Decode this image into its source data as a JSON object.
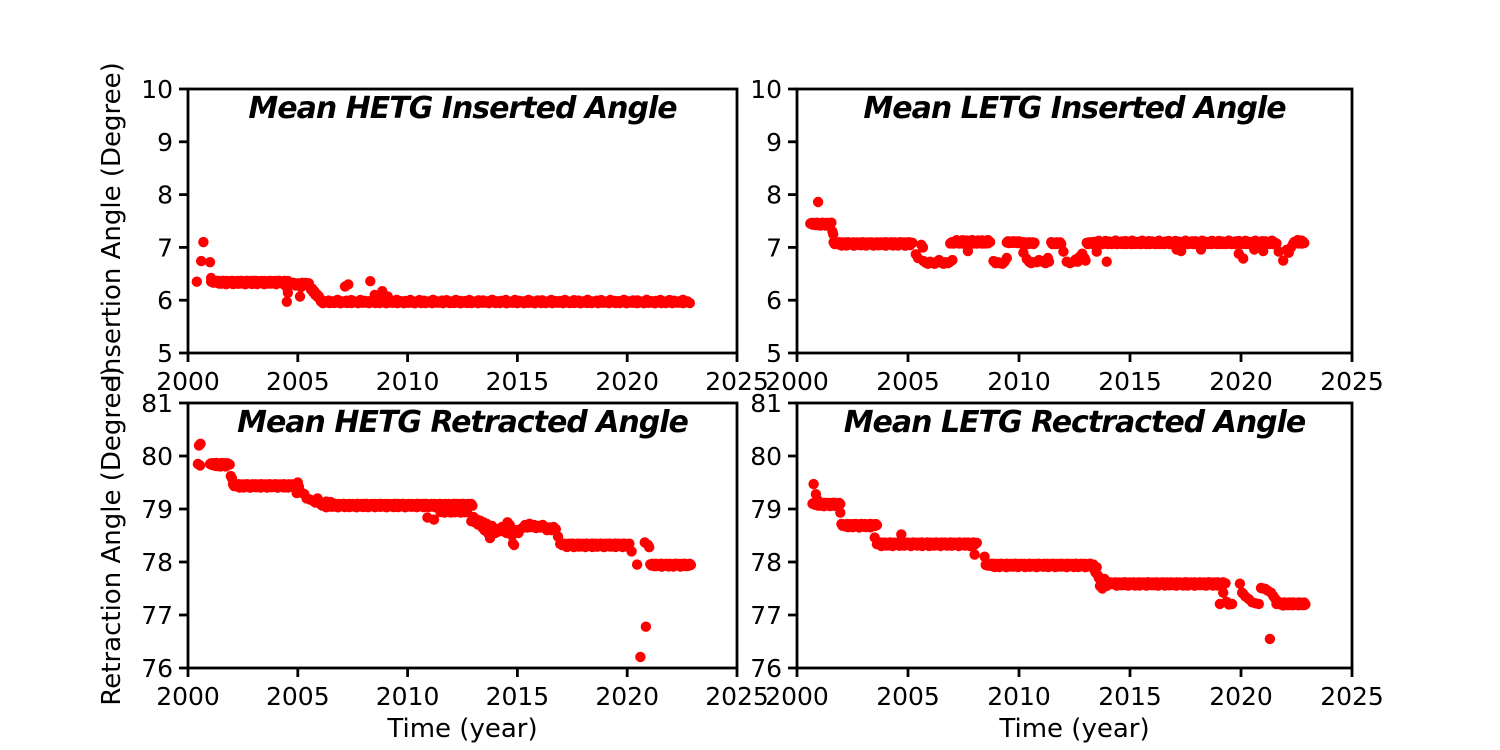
{
  "figure": {
    "background": "#ffffff",
    "axis_color": "#000000",
    "marker_color": "#ff0000"
  },
  "chart_data": [
    {
      "id": "hetg-inserted",
      "type": "scatter",
      "title": "Mean HETG Inserted Angle",
      "xlabel": "",
      "ylabel": "Insertion Angle (Degree)",
      "xlim": [
        2000,
        2025
      ],
      "ylim": [
        5,
        10
      ],
      "xticks": [
        2000,
        2005,
        2010,
        2015,
        2020,
        2025
      ],
      "yticks": [
        5,
        6,
        7,
        8,
        9,
        10
      ],
      "grid": false,
      "legend": "none",
      "marker": {
        "color": "#ff0000",
        "radius": 5.2
      },
      "runs": [
        [
          2001.05,
          2004.55,
          6.35,
          70
        ],
        [
          2001.3,
          2004.45,
          6.32,
          30
        ],
        [
          2006.05,
          2022.85,
          5.96,
          170
        ],
        [
          2006.4,
          2022.75,
          5.99,
          80
        ]
      ],
      "points": [
        [
          2000.4,
          6.35
        ],
        [
          2000.6,
          6.74
        ],
        [
          2000.7,
          7.1
        ],
        [
          2001.0,
          6.72
        ],
        [
          2001.05,
          6.42
        ],
        [
          2004.5,
          6.24
        ],
        [
          2004.5,
          5.97
        ],
        [
          2004.55,
          6.14
        ],
        [
          2004.7,
          6.3
        ],
        [
          2004.8,
          6.33
        ],
        [
          2004.9,
          6.28
        ],
        [
          2005.0,
          6.32
        ],
        [
          2005.05,
          6.3
        ],
        [
          2005.1,
          6.07
        ],
        [
          2005.15,
          6.25
        ],
        [
          2005.2,
          6.33
        ],
        [
          2005.3,
          6.3
        ],
        [
          2005.35,
          6.33
        ],
        [
          2005.45,
          6.28
        ],
        [
          2005.5,
          6.32
        ],
        [
          2005.55,
          6.25
        ],
        [
          2005.6,
          6.2
        ],
        [
          2005.65,
          6.22
        ],
        [
          2005.7,
          6.15
        ],
        [
          2005.75,
          6.17
        ],
        [
          2005.8,
          6.1
        ],
        [
          2005.85,
          6.12
        ],
        [
          2005.9,
          6.06
        ],
        [
          2005.95,
          6.08
        ],
        [
          2006.0,
          6.02
        ],
        [
          2006.1,
          6.0
        ],
        [
          2007.15,
          6.26
        ],
        [
          2007.3,
          6.3
        ],
        [
          2008.3,
          6.36
        ],
        [
          2008.5,
          6.1
        ],
        [
          2008.7,
          6.08
        ],
        [
          2008.85,
          6.17
        ],
        [
          2009.1,
          6.07
        ]
      ]
    },
    {
      "id": "letg-inserted",
      "type": "scatter",
      "title": "Mean LETG Inserted Angle",
      "xlabel": "",
      "ylabel": "",
      "xlim": [
        2000,
        2025
      ],
      "ylim": [
        5,
        10
      ],
      "xticks": [
        2000,
        2005,
        2010,
        2015,
        2020,
        2025
      ],
      "yticks": [
        5,
        6,
        7,
        8,
        9,
        10
      ],
      "grid": false,
      "legend": "none",
      "marker": {
        "color": "#ff0000",
        "radius": 5.2
      },
      "runs": [
        [
          2000.6,
          2001.55,
          7.45,
          20
        ],
        [
          2000.75,
          2001.45,
          7.43,
          10
        ],
        [
          2001.65,
          2005.2,
          7.08,
          72
        ],
        [
          2001.9,
          2005.1,
          7.05,
          30
        ],
        [
          2006.9,
          2008.7,
          7.09,
          37
        ],
        [
          2007.1,
          2008.6,
          7.12,
          18
        ],
        [
          2009.45,
          2010.0,
          7.1,
          12
        ],
        [
          2010.05,
          2010.7,
          7.08,
          14
        ],
        [
          2011.45,
          2011.9,
          7.08,
          10
        ],
        [
          2013.05,
          2021.6,
          7.08,
          170
        ],
        [
          2013.3,
          2021.4,
          7.11,
          55
        ],
        [
          2022.35,
          2022.85,
          7.09,
          11
        ],
        [
          2022.5,
          2022.8,
          7.12,
          6
        ]
      ],
      "points": [
        [
          2000.95,
          7.86
        ],
        [
          2001.6,
          7.3
        ],
        [
          2001.63,
          7.25
        ],
        [
          2005.35,
          6.87
        ],
        [
          2005.45,
          6.8
        ],
        [
          2005.6,
          7.05
        ],
        [
          2005.67,
          7.0
        ],
        [
          2005.7,
          6.74
        ],
        [
          2005.8,
          6.71
        ],
        [
          2005.9,
          6.69
        ],
        [
          2006.0,
          6.73
        ],
        [
          2006.1,
          6.71
        ],
        [
          2006.2,
          6.69
        ],
        [
          2006.3,
          6.73
        ],
        [
          2006.4,
          6.76
        ],
        [
          2006.5,
          6.71
        ],
        [
          2006.6,
          6.69
        ],
        [
          2006.7,
          6.72
        ],
        [
          2006.8,
          6.7
        ],
        [
          2006.9,
          6.73
        ],
        [
          2007.0,
          6.76
        ],
        [
          2007.7,
          6.93
        ],
        [
          2008.85,
          6.74
        ],
        [
          2008.95,
          6.7
        ],
        [
          2009.05,
          6.72
        ],
        [
          2009.15,
          6.7
        ],
        [
          2009.25,
          6.69
        ],
        [
          2009.35,
          6.73
        ],
        [
          2009.45,
          6.8
        ],
        [
          2010.2,
          6.9
        ],
        [
          2010.35,
          6.78
        ],
        [
          2010.45,
          6.73
        ],
        [
          2010.55,
          6.7
        ],
        [
          2010.65,
          6.72
        ],
        [
          2010.8,
          6.72
        ],
        [
          2010.9,
          6.76
        ],
        [
          2011.0,
          6.74
        ],
        [
          2011.1,
          6.72
        ],
        [
          2011.2,
          6.7
        ],
        [
          2011.3,
          6.8
        ],
        [
          2011.35,
          6.73
        ],
        [
          2012.0,
          6.92
        ],
        [
          2012.15,
          6.73
        ],
        [
          2012.3,
          6.7
        ],
        [
          2012.45,
          6.73
        ],
        [
          2012.55,
          6.77
        ],
        [
          2012.65,
          6.73
        ],
        [
          2012.75,
          6.83
        ],
        [
          2012.85,
          6.88
        ],
        [
          2012.95,
          6.8
        ],
        [
          2013.0,
          6.75
        ],
        [
          2013.5,
          6.92
        ],
        [
          2013.95,
          6.73
        ],
        [
          2017.1,
          6.96
        ],
        [
          2017.3,
          6.93
        ],
        [
          2018.2,
          6.96
        ],
        [
          2019.9,
          6.88
        ],
        [
          2020.1,
          6.79
        ],
        [
          2020.6,
          6.96
        ],
        [
          2021.0,
          6.93
        ],
        [
          2021.7,
          6.92
        ],
        [
          2021.9,
          6.75
        ],
        [
          2022.05,
          6.95
        ],
        [
          2022.15,
          6.9
        ],
        [
          2022.25,
          7.0
        ]
      ]
    },
    {
      "id": "hetg-retracted",
      "type": "scatter",
      "title": "Mean HETG Retracted Angle",
      "xlabel": "Time (year)",
      "ylabel": "Retraction Angle (Degree)",
      "xlim": [
        2000,
        2025
      ],
      "ylim": [
        76,
        81
      ],
      "xticks": [
        2000,
        2005,
        2010,
        2015,
        2020,
        2025
      ],
      "yticks": [
        76,
        77,
        78,
        79,
        80,
        81
      ],
      "grid": false,
      "legend": "none",
      "marker": {
        "color": "#ff0000",
        "radius": 5.2
      },
      "runs": [
        [
          2001.0,
          2001.9,
          79.85,
          19
        ],
        [
          2001.15,
          2001.8,
          79.82,
          9
        ],
        [
          2002.05,
          2004.95,
          79.45,
          60
        ],
        [
          2002.25,
          2004.85,
          79.42,
          28
        ],
        [
          2006.1,
          2012.95,
          79.08,
          140
        ],
        [
          2006.3,
          2012.0,
          79.05,
          55
        ],
        [
          2011.5,
          2012.7,
          78.95,
          14
        ],
        [
          2016.95,
          2020.1,
          78.33,
          64
        ],
        [
          2017.15,
          2020.0,
          78.3,
          28
        ],
        [
          2021.05,
          2022.9,
          77.95,
          38
        ],
        [
          2021.25,
          2022.85,
          77.93,
          16
        ]
      ],
      "points": [
        [
          2000.5,
          80.2
        ],
        [
          2000.57,
          80.23
        ],
        [
          2000.45,
          79.85
        ],
        [
          2000.55,
          79.82
        ],
        [
          2001.95,
          79.62
        ],
        [
          2002.0,
          79.58
        ],
        [
          2004.95,
          79.3
        ],
        [
          2005.0,
          79.5
        ],
        [
          2005.05,
          79.42
        ],
        [
          2005.2,
          79.3
        ],
        [
          2005.3,
          79.28
        ],
        [
          2005.4,
          79.2
        ],
        [
          2005.55,
          79.18
        ],
        [
          2005.7,
          79.15
        ],
        [
          2005.8,
          79.12
        ],
        [
          2005.9,
          79.2
        ],
        [
          2006.0,
          79.1
        ],
        [
          2006.3,
          79.14
        ],
        [
          2006.5,
          79.13
        ],
        [
          2010.9,
          78.84
        ],
        [
          2011.2,
          78.8
        ],
        [
          2012.1,
          79.0
        ],
        [
          2012.6,
          78.94
        ],
        [
          2012.9,
          78.77
        ],
        [
          2013.0,
          78.85
        ],
        [
          2013.05,
          78.75
        ],
        [
          2013.15,
          78.8
        ],
        [
          2013.2,
          78.71
        ],
        [
          2013.3,
          78.78
        ],
        [
          2013.4,
          78.65
        ],
        [
          2013.45,
          78.75
        ],
        [
          2013.5,
          78.6
        ],
        [
          2013.6,
          78.72
        ],
        [
          2013.65,
          78.55
        ],
        [
          2013.7,
          78.65
        ],
        [
          2013.75,
          78.45
        ],
        [
          2013.85,
          78.68
        ],
        [
          2013.9,
          78.6
        ],
        [
          2014.0,
          78.55
        ],
        [
          2014.1,
          78.62
        ],
        [
          2014.2,
          78.58
        ],
        [
          2014.3,
          78.66
        ],
        [
          2014.4,
          78.6
        ],
        [
          2014.5,
          78.55
        ],
        [
          2014.55,
          78.75
        ],
        [
          2014.65,
          78.7
        ],
        [
          2014.7,
          78.64
        ],
        [
          2014.75,
          78.5
        ],
        [
          2014.8,
          78.35
        ],
        [
          2014.85,
          78.32
        ],
        [
          2014.95,
          78.6
        ],
        [
          2015.05,
          78.55
        ],
        [
          2015.15,
          78.62
        ],
        [
          2015.25,
          78.65
        ],
        [
          2015.35,
          78.7
        ],
        [
          2015.45,
          78.65
        ],
        [
          2015.55,
          78.72
        ],
        [
          2015.65,
          78.66
        ],
        [
          2015.75,
          78.7
        ],
        [
          2015.85,
          78.64
        ],
        [
          2015.95,
          78.68
        ],
        [
          2016.05,
          78.65
        ],
        [
          2016.15,
          78.7
        ],
        [
          2016.25,
          78.64
        ],
        [
          2016.35,
          78.6
        ],
        [
          2016.45,
          78.65
        ],
        [
          2016.55,
          78.6
        ],
        [
          2016.65,
          78.66
        ],
        [
          2016.75,
          78.62
        ],
        [
          2016.85,
          78.48
        ],
        [
          2020.2,
          78.2
        ],
        [
          2020.45,
          77.95
        ],
        [
          2020.6,
          76.21
        ],
        [
          2020.85,
          76.78
        ],
        [
          2020.8,
          78.37
        ],
        [
          2020.95,
          78.32
        ],
        [
          2021.0,
          78.28
        ]
      ]
    },
    {
      "id": "letg-retracted",
      "type": "scatter",
      "title": "Mean LETG Rectracted Angle",
      "xlabel": "Time (year)",
      "ylabel": "",
      "xlim": [
        2000,
        2025
      ],
      "ylim": [
        76,
        81
      ],
      "xticks": [
        2000,
        2005,
        2010,
        2015,
        2020,
        2025
      ],
      "yticks": [
        76,
        77,
        78,
        79,
        80,
        81
      ],
      "grid": false,
      "legend": "none",
      "marker": {
        "color": "#ff0000",
        "radius": 5.2
      },
      "runs": [
        [
          2000.7,
          2001.95,
          79.1,
          26
        ],
        [
          2000.85,
          2001.85,
          79.07,
          12
        ],
        [
          2002.0,
          2003.6,
          78.7,
          33
        ],
        [
          2002.2,
          2003.5,
          78.67,
          14
        ],
        [
          2003.6,
          2008.1,
          78.35,
          92
        ],
        [
          2003.8,
          2008.0,
          78.32,
          42
        ],
        [
          2008.5,
          2013.3,
          77.95,
          98
        ],
        [
          2008.7,
          2013.2,
          77.92,
          44
        ],
        [
          2014.1,
          2019.3,
          77.6,
          105
        ],
        [
          2014.3,
          2019.15,
          77.57,
          48
        ],
        [
          2021.6,
          2022.85,
          77.22,
          26
        ],
        [
          2021.9,
          2022.9,
          77.2,
          20
        ]
      ],
      "points": [
        [
          2000.75,
          79.47
        ],
        [
          2000.85,
          79.28
        ],
        [
          2000.95,
          79.16
        ],
        [
          2001.95,
          78.93
        ],
        [
          2003.5,
          78.46
        ],
        [
          2004.7,
          78.52
        ],
        [
          2008.0,
          78.14
        ],
        [
          2008.45,
          78.1
        ],
        [
          2013.35,
          77.95
        ],
        [
          2013.4,
          77.85
        ],
        [
          2013.45,
          77.8
        ],
        [
          2013.5,
          77.9
        ],
        [
          2013.55,
          77.75
        ],
        [
          2013.6,
          77.7
        ],
        [
          2013.65,
          77.55
        ],
        [
          2013.7,
          77.62
        ],
        [
          2013.75,
          77.5
        ],
        [
          2013.85,
          77.68
        ],
        [
          2013.9,
          77.6
        ],
        [
          2013.95,
          77.55
        ],
        [
          2014.0,
          77.58
        ],
        [
          2019.05,
          77.21
        ],
        [
          2019.2,
          77.42
        ],
        [
          2019.35,
          77.25
        ],
        [
          2019.45,
          77.2
        ],
        [
          2019.6,
          77.21
        ],
        [
          2019.95,
          77.59
        ],
        [
          2020.05,
          77.42
        ],
        [
          2020.1,
          77.4
        ],
        [
          2020.2,
          77.35
        ],
        [
          2020.35,
          77.3
        ],
        [
          2020.5,
          77.24
        ],
        [
          2020.65,
          77.22
        ],
        [
          2020.8,
          77.21
        ],
        [
          2020.9,
          77.51
        ],
        [
          2021.0,
          77.5
        ],
        [
          2021.1,
          77.49
        ],
        [
          2021.2,
          77.46
        ],
        [
          2021.3,
          76.55
        ],
        [
          2021.35,
          77.42
        ],
        [
          2021.45,
          77.36
        ],
        [
          2021.55,
          77.3
        ],
        [
          2021.65,
          77.26
        ]
      ]
    }
  ]
}
